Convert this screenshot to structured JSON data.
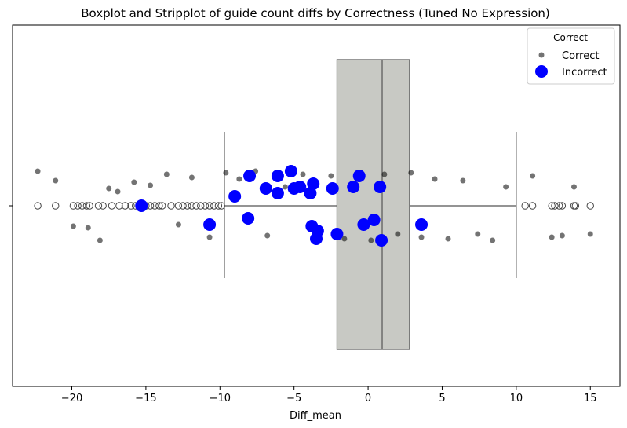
{
  "chart_data": {
    "type": "boxplot+stripplot",
    "title": "Boxplot and Stripplot of guide count diffs by Correctness (Tuned No Expression)",
    "xlabel": "Diff_mean",
    "ylabel": "",
    "xlim": [
      -24,
      17
    ],
    "xticks": [
      -20,
      -15,
      -10,
      -5,
      0,
      5,
      10,
      15
    ],
    "grid": false,
    "legend": {
      "title": "Correct",
      "position": "top-right",
      "entries": [
        "Correct",
        "Incorrect"
      ]
    },
    "colors": {
      "correct": "#000000",
      "incorrect": "#0000ff",
      "box": "#c8c9c4",
      "edge": "#555555"
    },
    "box": {
      "q1": -2.1,
      "median": 0.95,
      "q3": 2.8,
      "whisker_low": -9.7,
      "whisker_high": 10.0
    },
    "outliers": [
      -22.3,
      -21.1,
      -19.9,
      -19.6,
      -19.3,
      -19.0,
      -18.8,
      -18.2,
      -17.9,
      -17.3,
      -16.8,
      -16.4,
      -16.0,
      -15.7,
      -15.4,
      -15.0,
      -14.7,
      -14.4,
      -14.1,
      -13.9,
      -13.3,
      -12.8,
      -12.5,
      -12.2,
      -11.9,
      -11.6,
      -11.3,
      -11.0,
      -10.7,
      -10.4,
      -10.1,
      -9.9,
      10.6,
      11.1,
      12.4,
      12.6,
      12.9,
      13.1,
      13.9,
      14.0,
      15.0
    ],
    "series": [
      {
        "name": "Correct",
        "points": [
          [
            -22.3,
            0.22
          ],
          [
            -21.1,
            0.16
          ],
          [
            -19.9,
            -0.13
          ],
          [
            -18.9,
            -0.14
          ],
          [
            -18.1,
            -0.22
          ],
          [
            -17.5,
            0.11
          ],
          [
            -16.9,
            0.09
          ],
          [
            -15.8,
            0.15
          ],
          [
            -14.7,
            0.13
          ],
          [
            -13.6,
            0.2
          ],
          [
            -12.8,
            -0.12
          ],
          [
            -11.9,
            0.18
          ],
          [
            -10.7,
            -0.2
          ],
          [
            -9.6,
            0.21
          ],
          [
            -8.7,
            0.17
          ],
          [
            -7.6,
            0.22
          ],
          [
            -6.8,
            -0.19
          ],
          [
            -5.6,
            0.12
          ],
          [
            -4.4,
            0.2
          ],
          [
            -3.6,
            -0.21
          ],
          [
            -2.5,
            0.19
          ],
          [
            -1.6,
            -0.21
          ],
          [
            -0.7,
            0.18
          ],
          [
            0.2,
            -0.22
          ],
          [
            1.1,
            0.2
          ],
          [
            2.0,
            -0.18
          ],
          [
            2.9,
            0.21
          ],
          [
            3.6,
            -0.2
          ],
          [
            4.5,
            0.17
          ],
          [
            5.4,
            -0.21
          ],
          [
            6.4,
            0.16
          ],
          [
            7.4,
            -0.18
          ],
          [
            8.4,
            -0.22
          ],
          [
            9.3,
            0.12
          ],
          [
            11.1,
            0.19
          ],
          [
            12.4,
            -0.2
          ],
          [
            13.1,
            -0.19
          ],
          [
            13.9,
            0.12
          ],
          [
            15.0,
            -0.18
          ]
        ]
      },
      {
        "name": "Incorrect",
        "points": [
          [
            -15.3,
            0.0
          ],
          [
            -10.7,
            -0.12
          ],
          [
            -9.0,
            0.06
          ],
          [
            -8.0,
            0.19
          ],
          [
            -8.1,
            -0.08
          ],
          [
            -6.9,
            0.11
          ],
          [
            -6.1,
            0.19
          ],
          [
            -6.1,
            0.08
          ],
          [
            -5.2,
            0.22
          ],
          [
            -5.0,
            0.11
          ],
          [
            -4.6,
            0.12
          ],
          [
            -3.9,
            0.08
          ],
          [
            -3.7,
            0.14
          ],
          [
            -3.8,
            -0.13
          ],
          [
            -3.5,
            -0.21
          ],
          [
            -3.4,
            -0.16
          ],
          [
            -2.4,
            0.11
          ],
          [
            -2.1,
            -0.18
          ],
          [
            -1.0,
            0.12
          ],
          [
            -0.6,
            0.19
          ],
          [
            -0.3,
            -0.12
          ],
          [
            0.4,
            -0.09
          ],
          [
            0.9,
            -0.22
          ],
          [
            0.8,
            0.12
          ],
          [
            3.6,
            -0.12
          ]
        ]
      }
    ]
  }
}
